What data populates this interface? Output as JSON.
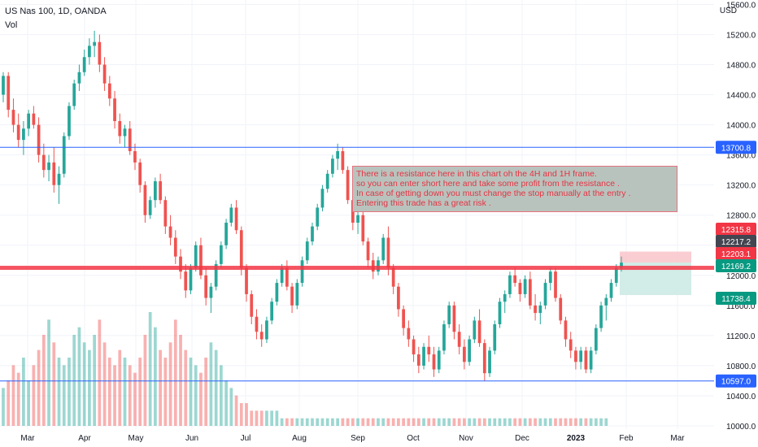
{
  "header": {
    "symbol": "US Nas 100, 1D, OANDA",
    "volume_label": "Vol",
    "currency": "USD"
  },
  "annotation": {
    "lines": [
      "There is a resistance here in this chart oh the 4H and 1H frame.",
      "so you can enter short here and take some profit from the resistance .",
      "In case of getting down you must change the stop manually at the entry .",
      "Entering this trade has a great risk ."
    ]
  },
  "colors": {
    "up": "#26a69a",
    "down": "#ef5350",
    "resistance_line": "#f23645",
    "horizontal_line": "#2962ff",
    "stop_zone": "#f7c1c6",
    "target_zone": "#cdeae4",
    "grid": "#f0f3fa",
    "axis_text": "#131722"
  },
  "chart_data": {
    "type": "candlestick",
    "title": "US Nas 100, 1D, OANDA",
    "ylabel": "USD",
    "ylim": [
      9900,
      15600
    ],
    "y_ticks": [
      10000,
      10400,
      10800,
      11200,
      11600,
      12000,
      12400,
      12800,
      13200,
      13600,
      14000,
      14400,
      14800,
      15200,
      15600
    ],
    "x_tick_labels": [
      "Mar",
      "Apr",
      "May",
      "Jun",
      "Jul",
      "Aug",
      "Sep",
      "Oct",
      "Nov",
      "Dec",
      "2023",
      "Feb",
      "Mar"
    ],
    "grid": true,
    "horizontal_lines": [
      {
        "price": 13700.8,
        "label": "13700.8",
        "color": "#2962ff"
      },
      {
        "price": 10597.0,
        "label": "10597.0",
        "color": "#2962ff"
      },
      {
        "price": 12100,
        "label": "",
        "color": "#f23645",
        "role": "resistance"
      }
    ],
    "price_labels": [
      {
        "value": "12315.8",
        "color": "#f23645"
      },
      {
        "value": "12217.2",
        "color": "#434651"
      },
      {
        "value": "12203.1",
        "color": "#f23645"
      },
      {
        "value": "12169.2",
        "color": "#089981"
      },
      {
        "value": "11738.4",
        "color": "#089981"
      }
    ],
    "position": {
      "type": "short",
      "entry": 12169.2,
      "stop": 12315.8,
      "target": 11738.4
    },
    "ohlc": [
      [
        14400,
        14700,
        14300,
        14650
      ],
      [
        14650,
        14700,
        14100,
        14200
      ],
      [
        14200,
        14350,
        13900,
        14000
      ],
      [
        14000,
        14150,
        13700,
        13800
      ],
      [
        13800,
        14050,
        13600,
        13950
      ],
      [
        13950,
        14200,
        13850,
        14150
      ],
      [
        14150,
        14250,
        13950,
        14000
      ],
      [
        14000,
        14100,
        13500,
        13600
      ],
      [
        13600,
        13750,
        13300,
        13400
      ],
      [
        13400,
        13600,
        13250,
        13500
      ],
      [
        13500,
        13700,
        13100,
        13200
      ],
      [
        13200,
        13450,
        12950,
        13350
      ],
      [
        13350,
        13900,
        13300,
        13850
      ],
      [
        13850,
        14300,
        13800,
        14250
      ],
      [
        14250,
        14600,
        14200,
        14550
      ],
      [
        14550,
        14800,
        14450,
        14700
      ],
      [
        14700,
        15000,
        14650,
        14900
      ],
      [
        14900,
        15150,
        14800,
        15050
      ],
      [
        15050,
        15250,
        14900,
        15100
      ],
      [
        15100,
        15200,
        14700,
        14800
      ],
      [
        14800,
        14900,
        14450,
        14550
      ],
      [
        14550,
        14650,
        14250,
        14350
      ],
      [
        14350,
        14450,
        13950,
        14050
      ],
      [
        14050,
        14150,
        13750,
        13850
      ],
      [
        13850,
        14000,
        13700,
        13950
      ],
      [
        13950,
        14050,
        13600,
        13650
      ],
      [
        13650,
        13750,
        13400,
        13500
      ],
      [
        13500,
        13550,
        13100,
        13200
      ],
      [
        13200,
        13250,
        12700,
        12800
      ],
      [
        12800,
        13050,
        12750,
        13000
      ],
      [
        13000,
        13300,
        12900,
        13250
      ],
      [
        13250,
        13350,
        12950,
        13000
      ],
      [
        13000,
        13050,
        12550,
        12650
      ],
      [
        12650,
        12800,
        12400,
        12500
      ],
      [
        12500,
        12600,
        12150,
        12250
      ],
      [
        12250,
        12350,
        11950,
        12050
      ],
      [
        12050,
        12150,
        11700,
        11800
      ],
      [
        11800,
        12150,
        11750,
        12100
      ],
      [
        12100,
        12450,
        12050,
        12400
      ],
      [
        12400,
        12500,
        11950,
        12000
      ],
      [
        12000,
        12100,
        11600,
        11700
      ],
      [
        11700,
        11900,
        11500,
        11850
      ],
      [
        11850,
        12200,
        11800,
        12150
      ],
      [
        12150,
        12450,
        12100,
        12400
      ],
      [
        12400,
        12750,
        12350,
        12700
      ],
      [
        12700,
        12950,
        12650,
        12900
      ],
      [
        12900,
        13000,
        12550,
        12600
      ],
      [
        12600,
        12650,
        12000,
        12100
      ],
      [
        12100,
        12150,
        11650,
        11750
      ],
      [
        11750,
        11800,
        11350,
        11450
      ],
      [
        11450,
        11550,
        11150,
        11250
      ],
      [
        11250,
        11350,
        11050,
        11150
      ],
      [
        11150,
        11450,
        11100,
        11400
      ],
      [
        11400,
        11700,
        11350,
        11650
      ],
      [
        11650,
        11950,
        11600,
        11900
      ],
      [
        11900,
        12150,
        11850,
        12100
      ],
      [
        12100,
        12200,
        11800,
        11850
      ],
      [
        11850,
        11900,
        11500,
        11600
      ],
      [
        11600,
        11950,
        11550,
        11900
      ],
      [
        11900,
        12250,
        11850,
        12200
      ],
      [
        12200,
        12500,
        12150,
        12450
      ],
      [
        12450,
        12700,
        12400,
        12650
      ],
      [
        12650,
        12950,
        12600,
        12900
      ],
      [
        12900,
        13200,
        12850,
        13150
      ],
      [
        13150,
        13400,
        13100,
        13350
      ],
      [
        13350,
        13600,
        13300,
        13550
      ],
      [
        13550,
        13750,
        13400,
        13650
      ],
      [
        13650,
        13700,
        13350,
        13400
      ],
      [
        13400,
        13450,
        12950,
        13000
      ],
      [
        13000,
        13050,
        12600,
        12700
      ],
      [
        12700,
        12850,
        12550,
        12800
      ],
      [
        12800,
        12950,
        12400,
        12450
      ],
      [
        12450,
        12500,
        12100,
        12200
      ],
      [
        12200,
        12300,
        11950,
        12050
      ],
      [
        12050,
        12250,
        12000,
        12200
      ],
      [
        12200,
        12550,
        12150,
        12500
      ],
      [
        12500,
        12650,
        12000,
        12100
      ],
      [
        12100,
        12150,
        11750,
        11850
      ],
      [
        11850,
        11900,
        11450,
        11550
      ],
      [
        11550,
        11600,
        11200,
        11300
      ],
      [
        11300,
        11400,
        11050,
        11150
      ],
      [
        11150,
        11200,
        10850,
        10950
      ],
      [
        10950,
        11050,
        10700,
        10800
      ],
      [
        10800,
        11100,
        10750,
        11050
      ],
      [
        11050,
        11200,
        10850,
        10950
      ],
      [
        10950,
        11050,
        10650,
        10750
      ],
      [
        10750,
        11050,
        10700,
        11000
      ],
      [
        11000,
        11400,
        10950,
        11350
      ],
      [
        11350,
        11650,
        11300,
        11600
      ],
      [
        11600,
        11650,
        11150,
        11250
      ],
      [
        11250,
        11350,
        10950,
        11050
      ],
      [
        11050,
        11150,
        10750,
        10850
      ],
      [
        10850,
        11200,
        10800,
        11150
      ],
      [
        11150,
        11450,
        11100,
        11400
      ],
      [
        11400,
        11550,
        11050,
        11100
      ],
      [
        11100,
        11150,
        10600,
        10700
      ],
      [
        10700,
        11050,
        10650,
        11000
      ],
      [
        11000,
        11400,
        10950,
        11350
      ],
      [
        11350,
        11700,
        11300,
        11650
      ],
      [
        11650,
        11800,
        11500,
        11750
      ],
      [
        11750,
        12050,
        11700,
        12000
      ],
      [
        12000,
        12100,
        11850,
        11900
      ],
      [
        11900,
        11950,
        11650,
        11750
      ],
      [
        11750,
        12000,
        11700,
        11950
      ],
      [
        11950,
        12050,
        11550,
        11600
      ],
      [
        11600,
        11750,
        11400,
        11500
      ],
      [
        11500,
        11650,
        11350,
        11600
      ],
      [
        11600,
        11950,
        11550,
        11900
      ],
      [
        11900,
        12100,
        11800,
        12050
      ],
      [
        12050,
        12100,
        11650,
        11700
      ],
      [
        11700,
        11750,
        11350,
        11400
      ],
      [
        11400,
        11450,
        11050,
        11150
      ],
      [
        11150,
        11250,
        10900,
        11000
      ],
      [
        11000,
        11050,
        10750,
        10850
      ],
      [
        10850,
        11050,
        10750,
        11000
      ],
      [
        11000,
        11050,
        10700,
        10750
      ],
      [
        10750,
        11050,
        10700,
        11000
      ],
      [
        11000,
        11350,
        10950,
        11300
      ],
      [
        11300,
        11650,
        11250,
        11600
      ],
      [
        11600,
        11750,
        11400,
        11700
      ],
      [
        11700,
        11950,
        11650,
        11900
      ],
      [
        11900,
        12150,
        11850,
        12100
      ],
      [
        12100,
        12250,
        12050,
        12169.2
      ]
    ],
    "volume": [
      5,
      6,
      8,
      7,
      9,
      6,
      8,
      10,
      12,
      14,
      11,
      9,
      8,
      9,
      12,
      13,
      11,
      10,
      12,
      14,
      11,
      9,
      8,
      10,
      9,
      8,
      7,
      9,
      12,
      15,
      13,
      10,
      9,
      11,
      14,
      12,
      10,
      9,
      8,
      7,
      9,
      11,
      10,
      8,
      6,
      5,
      4,
      3,
      3,
      2,
      2,
      2,
      2,
      2,
      2,
      1,
      1,
      1,
      1,
      1,
      1,
      1,
      1,
      1,
      1,
      1,
      1,
      1,
      1,
      1,
      1,
      1,
      1,
      1,
      1,
      1,
      1,
      1,
      1,
      1,
      1,
      1,
      1,
      1,
      1,
      1,
      1,
      1,
      1,
      1,
      1,
      1,
      1,
      1,
      1,
      1,
      1,
      1,
      1,
      1,
      1,
      1,
      1,
      1,
      1,
      1,
      1,
      1,
      1,
      1,
      1,
      1,
      1,
      1,
      1,
      1,
      1,
      1,
      1,
      1
    ]
  }
}
